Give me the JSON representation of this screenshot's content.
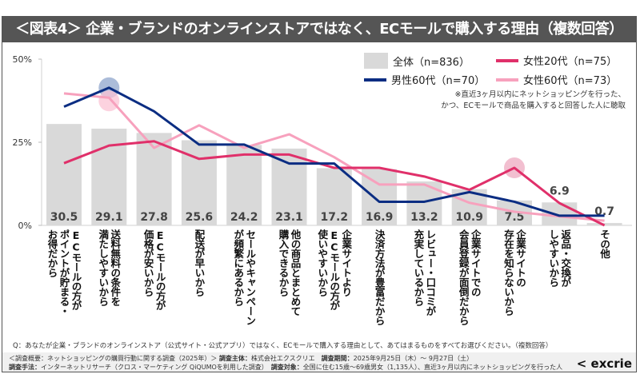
{
  "title": "＜図表4＞ 企業・ブランドのオンラインストアではなく、ECモールで購入する理由（複数回答）",
  "note": "※直近3ヶ月以内にネットショッピングを行った、\nかつ、ECモールで商品を購入すると回答した人に聴取",
  "question": "Q：あなたが企業・ブランドのオンラインストア（公式サイト・公式アプリ）ではなく、ECモールで購入する理由として、あてはまるものをすべてお選びください。（複数回答）",
  "meta": {
    "overview_label": "＜調査概要：ネットショッピングの購買行動に関する調査（2025年）＞",
    "sponsor_label": "調査主体：",
    "sponsor": "株式会社エクスクリエ",
    "period_label": "調査期間：",
    "period": "2025年9月25日（木）～ 9月27日（土）",
    "method_label": "調査手法：",
    "method": "インターネットリサーチ（クロス・マーケティング QiQUMOを利用した調査）",
    "target_label": "調査対象：",
    "target": "全国に住む15歳～69歳男女（1,135人）、直近3ヶ月以内にネットショッピングを行った人"
  },
  "logo": "excrie",
  "chart_data": {
    "type": "bar+line",
    "categories": [
      "ECモールの方が\nポイントが貯まる・\nお得だから",
      "送料無料の条件を\n満たしやすいから",
      "ECモールの方が\n価格が安いから",
      "配送が早いから",
      "セールやキャンペーン\nが頻繁にあるから",
      "他の商品とまとめて\n購入できるから",
      "企業サイトより\nECモールの方が\n使いやすいから",
      "決済方法が豊富だから",
      "レビュー・口コミが\n充実しているから",
      "企業サイトでの\n会員登録が面倒だから",
      "企業サイトの\n存在を知らないから",
      "返品・交換が\nしやすいから",
      "その他"
    ],
    "series": [
      {
        "name": "全体（n=836）",
        "type": "bar",
        "color": "#d9d9d9",
        "values": [
          30.5,
          29.1,
          27.8,
          25.6,
          24.2,
          23.1,
          17.2,
          16.9,
          13.2,
          10.9,
          7.5,
          6.9,
          0.7
        ]
      },
      {
        "name": "男性60代（n=70）",
        "type": "line",
        "color": "#0b2d82",
        "values": [
          35.7,
          41.4,
          34.3,
          24.3,
          24.3,
          18.6,
          18.6,
          7.1,
          7.1,
          10.0,
          7.1,
          2.9,
          2.9
        ],
        "highlight": [
          1
        ]
      },
      {
        "name": "女性20代（n=75）",
        "type": "line",
        "color": "#e0306a",
        "values": [
          18.7,
          24.0,
          25.3,
          20.0,
          21.3,
          21.3,
          17.3,
          17.3,
          14.7,
          10.7,
          17.3,
          6.7,
          0.0
        ],
        "highlight": [
          10
        ]
      },
      {
        "name": "女性60代（n=73）",
        "type": "line",
        "color": "#f7a1bd",
        "values": [
          39.7,
          38.4,
          23.3,
          30.1,
          23.3,
          27.4,
          20.5,
          12.3,
          12.3,
          6.8,
          4.1,
          2.7,
          1.4
        ],
        "highlight": [
          1
        ]
      }
    ],
    "yticks": [
      "0%",
      "25%",
      "50%"
    ],
    "ylim": [
      0,
      50
    ],
    "legend": "top-right"
  }
}
